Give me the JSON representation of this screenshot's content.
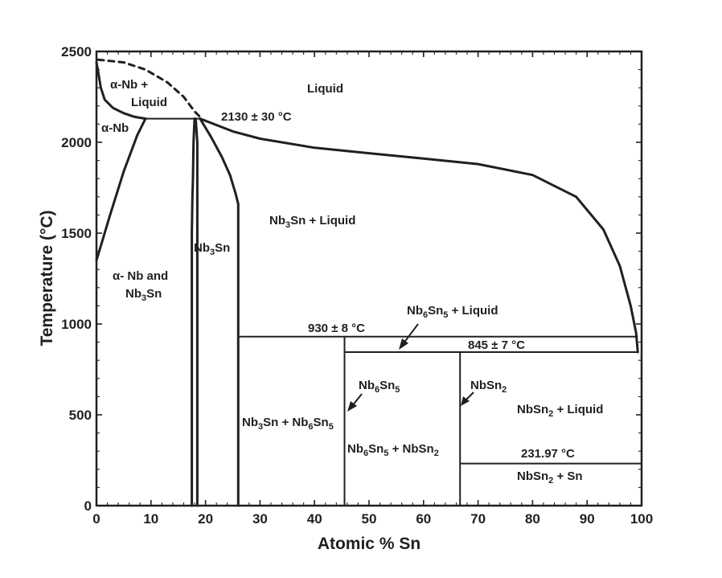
{
  "chart_data": {
    "type": "line",
    "xlabel": "Atomic % Sn",
    "ylabel": "Temperature (°C)",
    "xlim": [
      0,
      100
    ],
    "ylim": [
      0,
      2500
    ],
    "x_ticks": [
      0,
      10,
      20,
      30,
      40,
      50,
      60,
      70,
      80,
      90,
      100
    ],
    "y_ticks": [
      0,
      500,
      1000,
      1500,
      2000,
      2500
    ],
    "grid": false,
    "phase_boundaries": [
      {
        "style": "solid",
        "points": [
          [
            0,
            2440
          ],
          [
            0.3,
            2390
          ],
          [
            0.8,
            2300
          ],
          [
            1.5,
            2235
          ],
          [
            3,
            2190
          ],
          [
            5,
            2160
          ],
          [
            7,
            2140
          ],
          [
            9,
            2130
          ]
        ]
      },
      {
        "style": "dashed",
        "points": [
          [
            0.3,
            2455
          ],
          [
            5,
            2440
          ],
          [
            9,
            2400
          ],
          [
            13,
            2330
          ],
          [
            16,
            2250
          ],
          [
            18,
            2170
          ],
          [
            19,
            2140
          ]
        ]
      },
      {
        "style": "solid",
        "points": [
          [
            9,
            2130
          ],
          [
            19,
            2130
          ]
        ]
      },
      {
        "style": "solid",
        "points": [
          [
            0,
            1350
          ],
          [
            2.5,
            1600
          ],
          [
            5,
            1840
          ],
          [
            7.5,
            2040
          ],
          [
            9,
            2130
          ]
        ]
      },
      {
        "style": "solid",
        "points": [
          [
            18,
            2130
          ],
          [
            17.8,
            2000
          ],
          [
            17.7,
            1800
          ],
          [
            17.6,
            1700
          ],
          [
            17.5,
            1500
          ],
          [
            17.5,
            0
          ]
        ]
      },
      {
        "style": "solid",
        "points": [
          [
            18.2,
            2130
          ],
          [
            18.5,
            2000
          ],
          [
            18.5,
            0
          ]
        ]
      },
      {
        "style": "solid",
        "points": [
          [
            19,
            2130
          ],
          [
            21,
            2030
          ],
          [
            23,
            1920
          ],
          [
            24.5,
            1820
          ],
          [
            25.5,
            1720
          ],
          [
            26,
            1660
          ],
          [
            26,
            0
          ]
        ]
      },
      {
        "style": "solid",
        "points": [
          [
            19,
            2130
          ],
          [
            25,
            2060
          ],
          [
            30,
            2020
          ],
          [
            40,
            1970
          ],
          [
            50,
            1940
          ],
          [
            60,
            1910
          ],
          [
            70,
            1880
          ],
          [
            80,
            1820
          ],
          [
            88,
            1700
          ],
          [
            93,
            1520
          ],
          [
            96,
            1320
          ],
          [
            98,
            1100
          ],
          [
            99,
            950
          ],
          [
            99.3,
            845
          ]
        ]
      },
      {
        "style": "solid",
        "points": [
          [
            26,
            930
          ],
          [
            99.3,
            930
          ]
        ]
      },
      {
        "style": "solid",
        "points": [
          [
            45.5,
            845
          ],
          [
            99.3,
            845
          ]
        ]
      },
      {
        "style": "solid",
        "points": [
          [
            45.5,
            930
          ],
          [
            45.5,
            0
          ]
        ]
      },
      {
        "style": "solid",
        "points": [
          [
            66.7,
            845
          ],
          [
            66.7,
            0
          ]
        ]
      },
      {
        "style": "solid",
        "points": [
          [
            66.7,
            231.97
          ],
          [
            100,
            231.97
          ]
        ]
      }
    ],
    "annotations": [
      {
        "label": "Liquid",
        "x": 42,
        "y": 2210
      },
      {
        "label": "2130 ± 30 °C",
        "x": 30,
        "y": 2130
      },
      {
        "label": "α-Nb",
        "x": 4,
        "y": 2080
      },
      {
        "label": "930 ± 8 °C",
        "x": 43,
        "y": 985
      },
      {
        "label": "845 ± 7 °C",
        "x": 78,
        "y": 880
      },
      {
        "label": "231.97 °C",
        "x": 82,
        "y": 280
      }
    ]
  },
  "labels": {
    "liquid": "Liquid",
    "alpha_nb_liquid_1": "α-Nb +",
    "alpha_nb_liquid_2": "Liquid",
    "peritectic_top": "2130 ± 30 °C",
    "alpha_nb": "α-Nb",
    "alpha_nb3sn_1": "α- Nb and",
    "alpha_nb3sn_2": {
      "a": "Nb",
      "b": "3",
      "c": "Sn"
    },
    "nb3sn": {
      "a": "Nb",
      "b": "3",
      "c": "Sn"
    },
    "nb3sn_liquid": {
      "a": "Nb",
      "b": "3",
      "c": "Sn + Liquid"
    },
    "nb6sn5_liquid": {
      "a": "Nb",
      "b": "6",
      "c": "Sn",
      "d": "5",
      "e": " + Liquid"
    },
    "peritectic_930": "930 ± 8 °C",
    "peritectic_845": "845 ± 7 °C",
    "nb6sn5": {
      "a": "Nb",
      "b": "6",
      "c": "Sn",
      "d": "5"
    },
    "nbsn2": {
      "a": "NbSn",
      "b": "2"
    },
    "nbsn2_liquid": {
      "a": "NbSn",
      "b": "2",
      "c": " + Liquid"
    },
    "nb3sn_nb6sn5": {
      "a": "Nb",
      "b": "3",
      "c": "Sn + Nb",
      "d": "6",
      "e": "Sn",
      "f": "5"
    },
    "nb6sn5_nbsn2": {
      "a": "Nb",
      "b": "6",
      "c": "Sn",
      "d": "5",
      "e": " + NbSn",
      "f": "2"
    },
    "sn_melting": "231.97 °C",
    "nbsn2_sn": {
      "a": "NbSn",
      "b": "2",
      "c": " + Sn"
    }
  }
}
